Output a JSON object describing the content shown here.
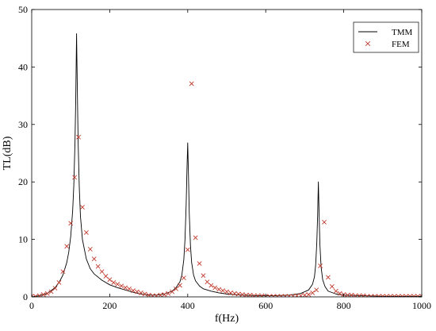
{
  "chart_data": {
    "type": "line",
    "xlabel": "f(Hz)",
    "ylabel": "TL(dB)",
    "xlim": [
      0,
      1000
    ],
    "ylim": [
      0,
      50
    ],
    "xticks": [
      "0",
      "200",
      "400",
      "600",
      "800",
      "1000"
    ],
    "yticks": [
      "0",
      "10",
      "20",
      "30",
      "40",
      "50"
    ],
    "grid": false,
    "legend_position": "top-right",
    "series": [
      {
        "name": "TMM",
        "style": "line",
        "color": "#000000",
        "x": [
          0,
          20,
          40,
          60,
          70,
          80,
          90,
          95,
          100,
          105,
          108,
          111,
          113,
          115,
          117,
          119,
          122,
          125,
          130,
          140,
          150,
          160,
          180,
          200,
          220,
          240,
          260,
          280,
          300,
          320,
          340,
          360,
          370,
          380,
          385,
          390,
          393,
          396,
          398,
          400,
          402,
          404,
          407,
          410,
          415,
          420,
          430,
          440,
          460,
          480,
          500,
          540,
          580,
          620,
          660,
          690,
          710,
          720,
          725,
          728,
          731,
          733,
          735,
          737,
          739,
          742,
          746,
          752,
          760,
          780,
          800,
          850,
          900,
          950,
          1000
        ],
        "y": [
          0.0,
          0.2,
          0.6,
          1.6,
          2.5,
          3.8,
          6.0,
          7.8,
          10.5,
          15.0,
          19.5,
          27.0,
          35.0,
          45.8,
          36.0,
          27.0,
          19.0,
          14.0,
          10.0,
          6.6,
          4.9,
          4.0,
          2.9,
          2.1,
          1.6,
          1.2,
          0.8,
          0.5,
          0.3,
          0.3,
          0.5,
          1.0,
          1.6,
          2.6,
          3.8,
          6.5,
          10.0,
          16.0,
          22.0,
          26.8,
          21.0,
          14.5,
          9.0,
          6.0,
          3.8,
          2.8,
          1.9,
          1.4,
          1.0,
          0.7,
          0.5,
          0.3,
          0.2,
          0.2,
          0.3,
          0.6,
          1.2,
          2.2,
          3.5,
          5.5,
          9.5,
          14.0,
          20.0,
          14.0,
          9.0,
          5.2,
          3.0,
          1.8,
          1.0,
          0.5,
          0.3,
          0.2,
          0.1,
          0.1,
          0.1
        ]
      },
      {
        "name": "FEM",
        "style": "markers",
        "marker": "x",
        "color": "#c0392b",
        "x": [
          0,
          10,
          20,
          30,
          40,
          50,
          60,
          70,
          80,
          90,
          100,
          110,
          120,
          130,
          140,
          150,
          160,
          170,
          180,
          190,
          200,
          210,
          220,
          230,
          240,
          250,
          260,
          270,
          280,
          290,
          300,
          310,
          320,
          330,
          340,
          350,
          360,
          370,
          380,
          390,
          400,
          410,
          420,
          430,
          440,
          450,
          460,
          470,
          480,
          490,
          500,
          510,
          520,
          530,
          540,
          550,
          560,
          570,
          580,
          590,
          600,
          610,
          620,
          630,
          640,
          650,
          660,
          670,
          680,
          690,
          700,
          710,
          720,
          730,
          740,
          750,
          760,
          770,
          780,
          790,
          800,
          810,
          820,
          830,
          840,
          850,
          860,
          870,
          880,
          890,
          900,
          910,
          920,
          930,
          940,
          950,
          960,
          970,
          980,
          990,
          1000
        ],
        "y": [
          0.1,
          0.1,
          0.2,
          0.4,
          0.6,
          0.9,
          1.5,
          2.5,
          4.4,
          8.8,
          12.8,
          20.8,
          27.8,
          15.6,
          11.2,
          8.3,
          6.6,
          5.3,
          4.4,
          3.6,
          3.0,
          2.5,
          2.2,
          1.9,
          1.6,
          1.4,
          1.1,
          0.9,
          0.7,
          0.5,
          0.3,
          0.2,
          0.2,
          0.3,
          0.4,
          0.6,
          0.9,
          1.4,
          2.0,
          3.3,
          8.2,
          37.1,
          10.3,
          5.8,
          3.7,
          2.6,
          2.0,
          1.6,
          1.3,
          1.1,
          0.9,
          0.7,
          0.6,
          0.5,
          0.4,
          0.3,
          0.3,
          0.2,
          0.2,
          0.2,
          0.1,
          0.1,
          0.1,
          0.1,
          0.1,
          0.1,
          0.1,
          0.1,
          0.2,
          0.2,
          0.3,
          0.4,
          0.7,
          1.2,
          5.4,
          13.0,
          3.4,
          1.8,
          1.0,
          0.6,
          0.4,
          0.3,
          0.3,
          0.2,
          0.2,
          0.2,
          0.1,
          0.1,
          0.1,
          0.1,
          0.1,
          0.1,
          0.1,
          0.1,
          0.1,
          0.1,
          0.1,
          0.1,
          0.1,
          0.1,
          0.1
        ]
      }
    ]
  }
}
